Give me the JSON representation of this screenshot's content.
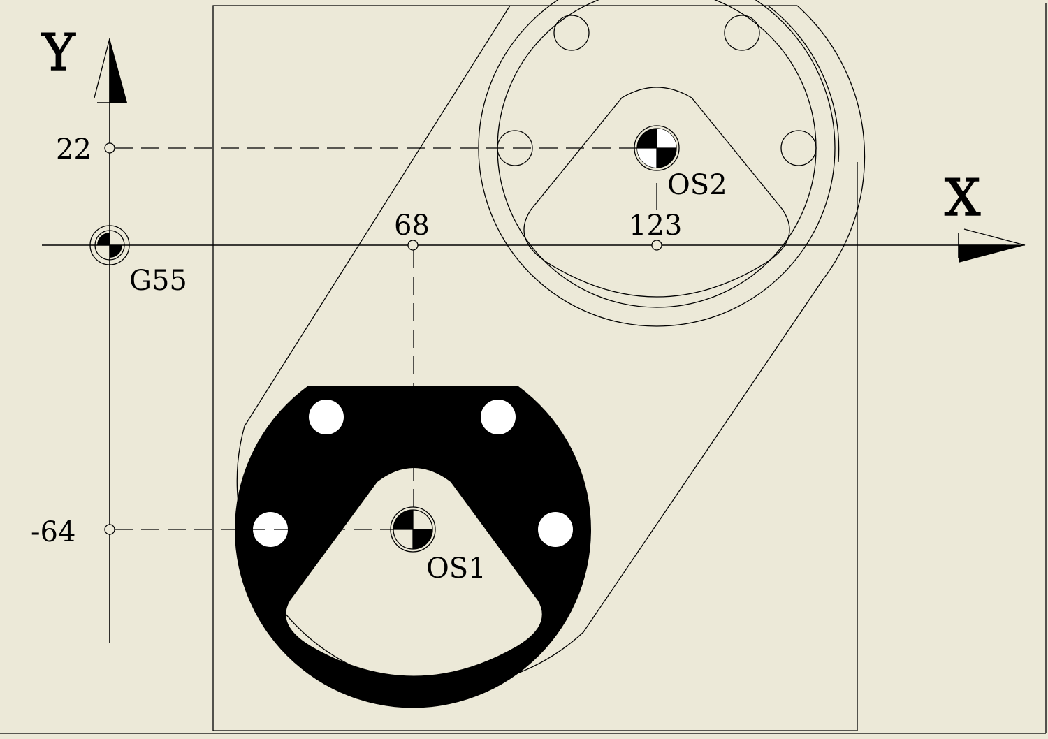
{
  "axes": {
    "x_label": "X",
    "y_label": "Y"
  },
  "ticks": {
    "y_upper": "22",
    "y_lower": "-64",
    "x_first": "68",
    "x_second": "123"
  },
  "markers": {
    "work_origin": "G55",
    "offset_1": "OS1",
    "offset_2": "OS2"
  },
  "colors": {
    "background": "#ECE9D8",
    "ink": "#000000",
    "hole_fill": "#FFFFFF"
  }
}
